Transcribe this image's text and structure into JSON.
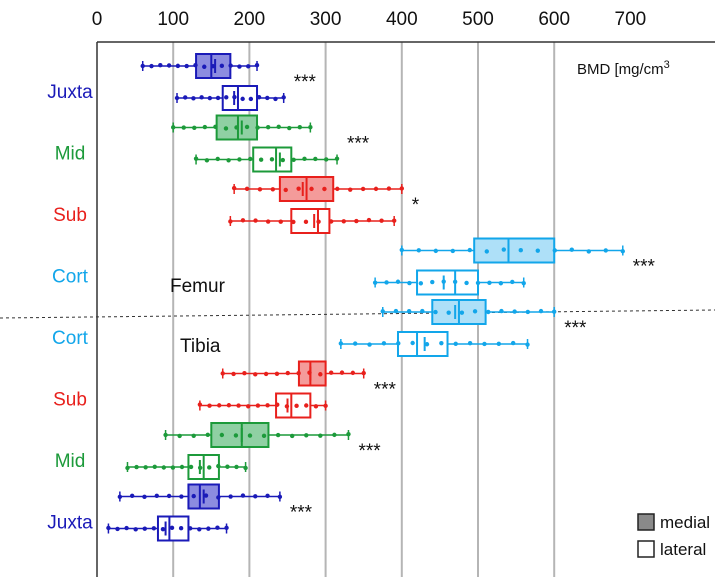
{
  "chart_data": {
    "type": "box",
    "x_ticks": [
      0,
      100,
      200,
      300,
      400,
      500,
      600,
      700
    ],
    "xlim": [
      0,
      700
    ],
    "gridlines": [
      100,
      200,
      300,
      400,
      500,
      600
    ],
    "unit_label": "BMD [mg/cm",
    "unit_superscript": "3",
    "sections": [
      {
        "label": "Femur"
      },
      {
        "label": "Tibia"
      }
    ],
    "legend": [
      {
        "label": "medial",
        "fill": "filled"
      },
      {
        "label": "lateral",
        "fill": "empty"
      }
    ],
    "colors": {
      "Juxta": "#1a1ab8",
      "Mid": "#1c9a3a",
      "Sub": "#e8201c",
      "Cort": "#12a6ea"
    },
    "fills": {
      "Juxta": "#8c8ce0",
      "Mid": "#8fd0a3",
      "Sub": "#f49b9a",
      "Cort": "#aee0f8"
    },
    "rows": [
      {
        "label": "Juxta",
        "region": "Juxta",
        "bone": "Femur",
        "annot": "***",
        "boxes": [
          {
            "side": "medial",
            "min": 60,
            "q1": 130,
            "median": 150,
            "mean": 155,
            "q3": 175,
            "max": 210
          },
          {
            "side": "lateral",
            "min": 105,
            "q1": 165,
            "median": 185,
            "mean": 180,
            "q3": 210,
            "max": 245
          }
        ]
      },
      {
        "label": "Mid",
        "region": "Mid",
        "bone": "Femur",
        "annot": "***",
        "boxes": [
          {
            "side": "medial",
            "min": 100,
            "q1": 157,
            "median": 185,
            "mean": 190,
            "q3": 210,
            "max": 280
          },
          {
            "side": "lateral",
            "min": 130,
            "q1": 205,
            "median": 235,
            "mean": 240,
            "q3": 255,
            "max": 315
          }
        ]
      },
      {
        "label": "Sub",
        "region": "Sub",
        "bone": "Femur",
        "annot": "*",
        "boxes": [
          {
            "side": "medial",
            "min": 180,
            "q1": 240,
            "median": 275,
            "mean": 270,
            "q3": 310,
            "max": 400
          },
          {
            "side": "lateral",
            "min": 175,
            "q1": 255,
            "median": 290,
            "mean": 285,
            "q3": 305,
            "max": 390
          }
        ]
      },
      {
        "label": "Cort",
        "region": "Cort",
        "bone": "Femur",
        "annot": "***",
        "boxes": [
          {
            "side": "medial",
            "min": 400,
            "q1": 495,
            "median": 540,
            "mean": 540,
            "q3": 600,
            "max": 690
          },
          {
            "side": "lateral",
            "min": 365,
            "q1": 420,
            "median": 470,
            "mean": 455,
            "q3": 500,
            "max": 560
          }
        ]
      },
      {
        "label": "Cort",
        "region": "Cort",
        "bone": "Tibia",
        "annot": "***",
        "boxes": [
          {
            "side": "medial",
            "min": 375,
            "q1": 440,
            "median": 475,
            "mean": 470,
            "q3": 510,
            "max": 600
          },
          {
            "side": "lateral",
            "min": 320,
            "q1": 395,
            "median": 420,
            "mean": 430,
            "q3": 460,
            "max": 565
          }
        ]
      },
      {
        "label": "Sub",
        "region": "Sub",
        "bone": "Tibia",
        "annot": "***",
        "boxes": [
          {
            "side": "medial",
            "min": 165,
            "q1": 265,
            "median": 280,
            "mean": 280,
            "q3": 300,
            "max": 350
          },
          {
            "side": "lateral",
            "min": 135,
            "q1": 235,
            "median": 255,
            "mean": 250,
            "q3": 280,
            "max": 300
          }
        ]
      },
      {
        "label": "Mid",
        "region": "Mid",
        "bone": "Tibia",
        "annot": "***",
        "boxes": [
          {
            "side": "medial",
            "min": 90,
            "q1": 150,
            "median": 190,
            "mean": 190,
            "q3": 225,
            "max": 330
          },
          {
            "side": "lateral",
            "min": 40,
            "q1": 120,
            "median": 140,
            "mean": 135,
            "q3": 160,
            "max": 195
          }
        ]
      },
      {
        "label": "Juxta",
        "region": "Juxta",
        "bone": "Tibia",
        "annot": "***",
        "boxes": [
          {
            "side": "medial",
            "min": 30,
            "q1": 120,
            "median": 135,
            "mean": 140,
            "q3": 160,
            "max": 240
          },
          {
            "side": "lateral",
            "min": 15,
            "q1": 80,
            "median": 95,
            "mean": 90,
            "q3": 120,
            "max": 170
          }
        ]
      }
    ]
  }
}
